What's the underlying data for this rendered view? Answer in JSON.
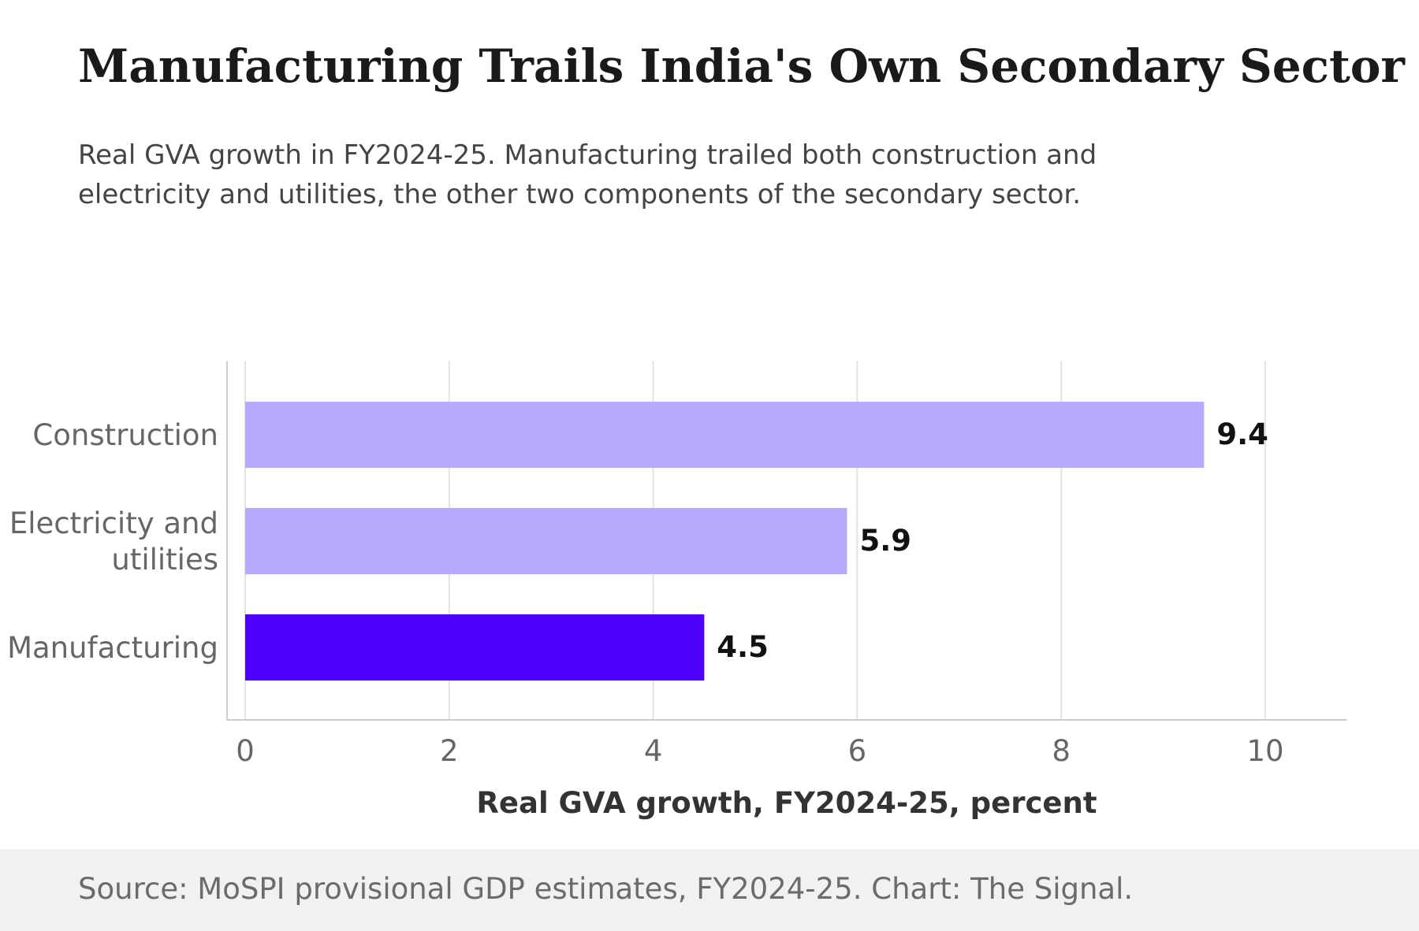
{
  "title": "Manufacturing Trails India's Own Secondary Sector",
  "subtitle": "Real GVA growth in FY2024-25. Manufacturing trailed both construction and electricity and utilities, the other two components of the secondary sector.",
  "source": "Source: MoSPI provisional GDP estimates, FY2024-25. Chart: The Signal.",
  "chart_data": {
    "type": "bar",
    "orientation": "horizontal",
    "categories": [
      [
        "Construction"
      ],
      [
        "Electricity and",
        "utilities"
      ],
      [
        "Manufacturing"
      ]
    ],
    "values": [
      9.4,
      5.9,
      4.5
    ],
    "value_labels": [
      "9.4",
      "5.9",
      "4.5"
    ],
    "colors": [
      "#b8a9fe",
      "#b8a9fe",
      "#4f00fe"
    ],
    "xlabel": "Real GVA growth, FY2024-25, percent",
    "xlim": [
      0,
      10.8
    ],
    "xticks": [
      0,
      2,
      4,
      6,
      8,
      10
    ],
    "xtick_labels": [
      "0",
      "2",
      "4",
      "6",
      "8",
      "10"
    ],
    "grid": "vertical",
    "legend": "none"
  }
}
